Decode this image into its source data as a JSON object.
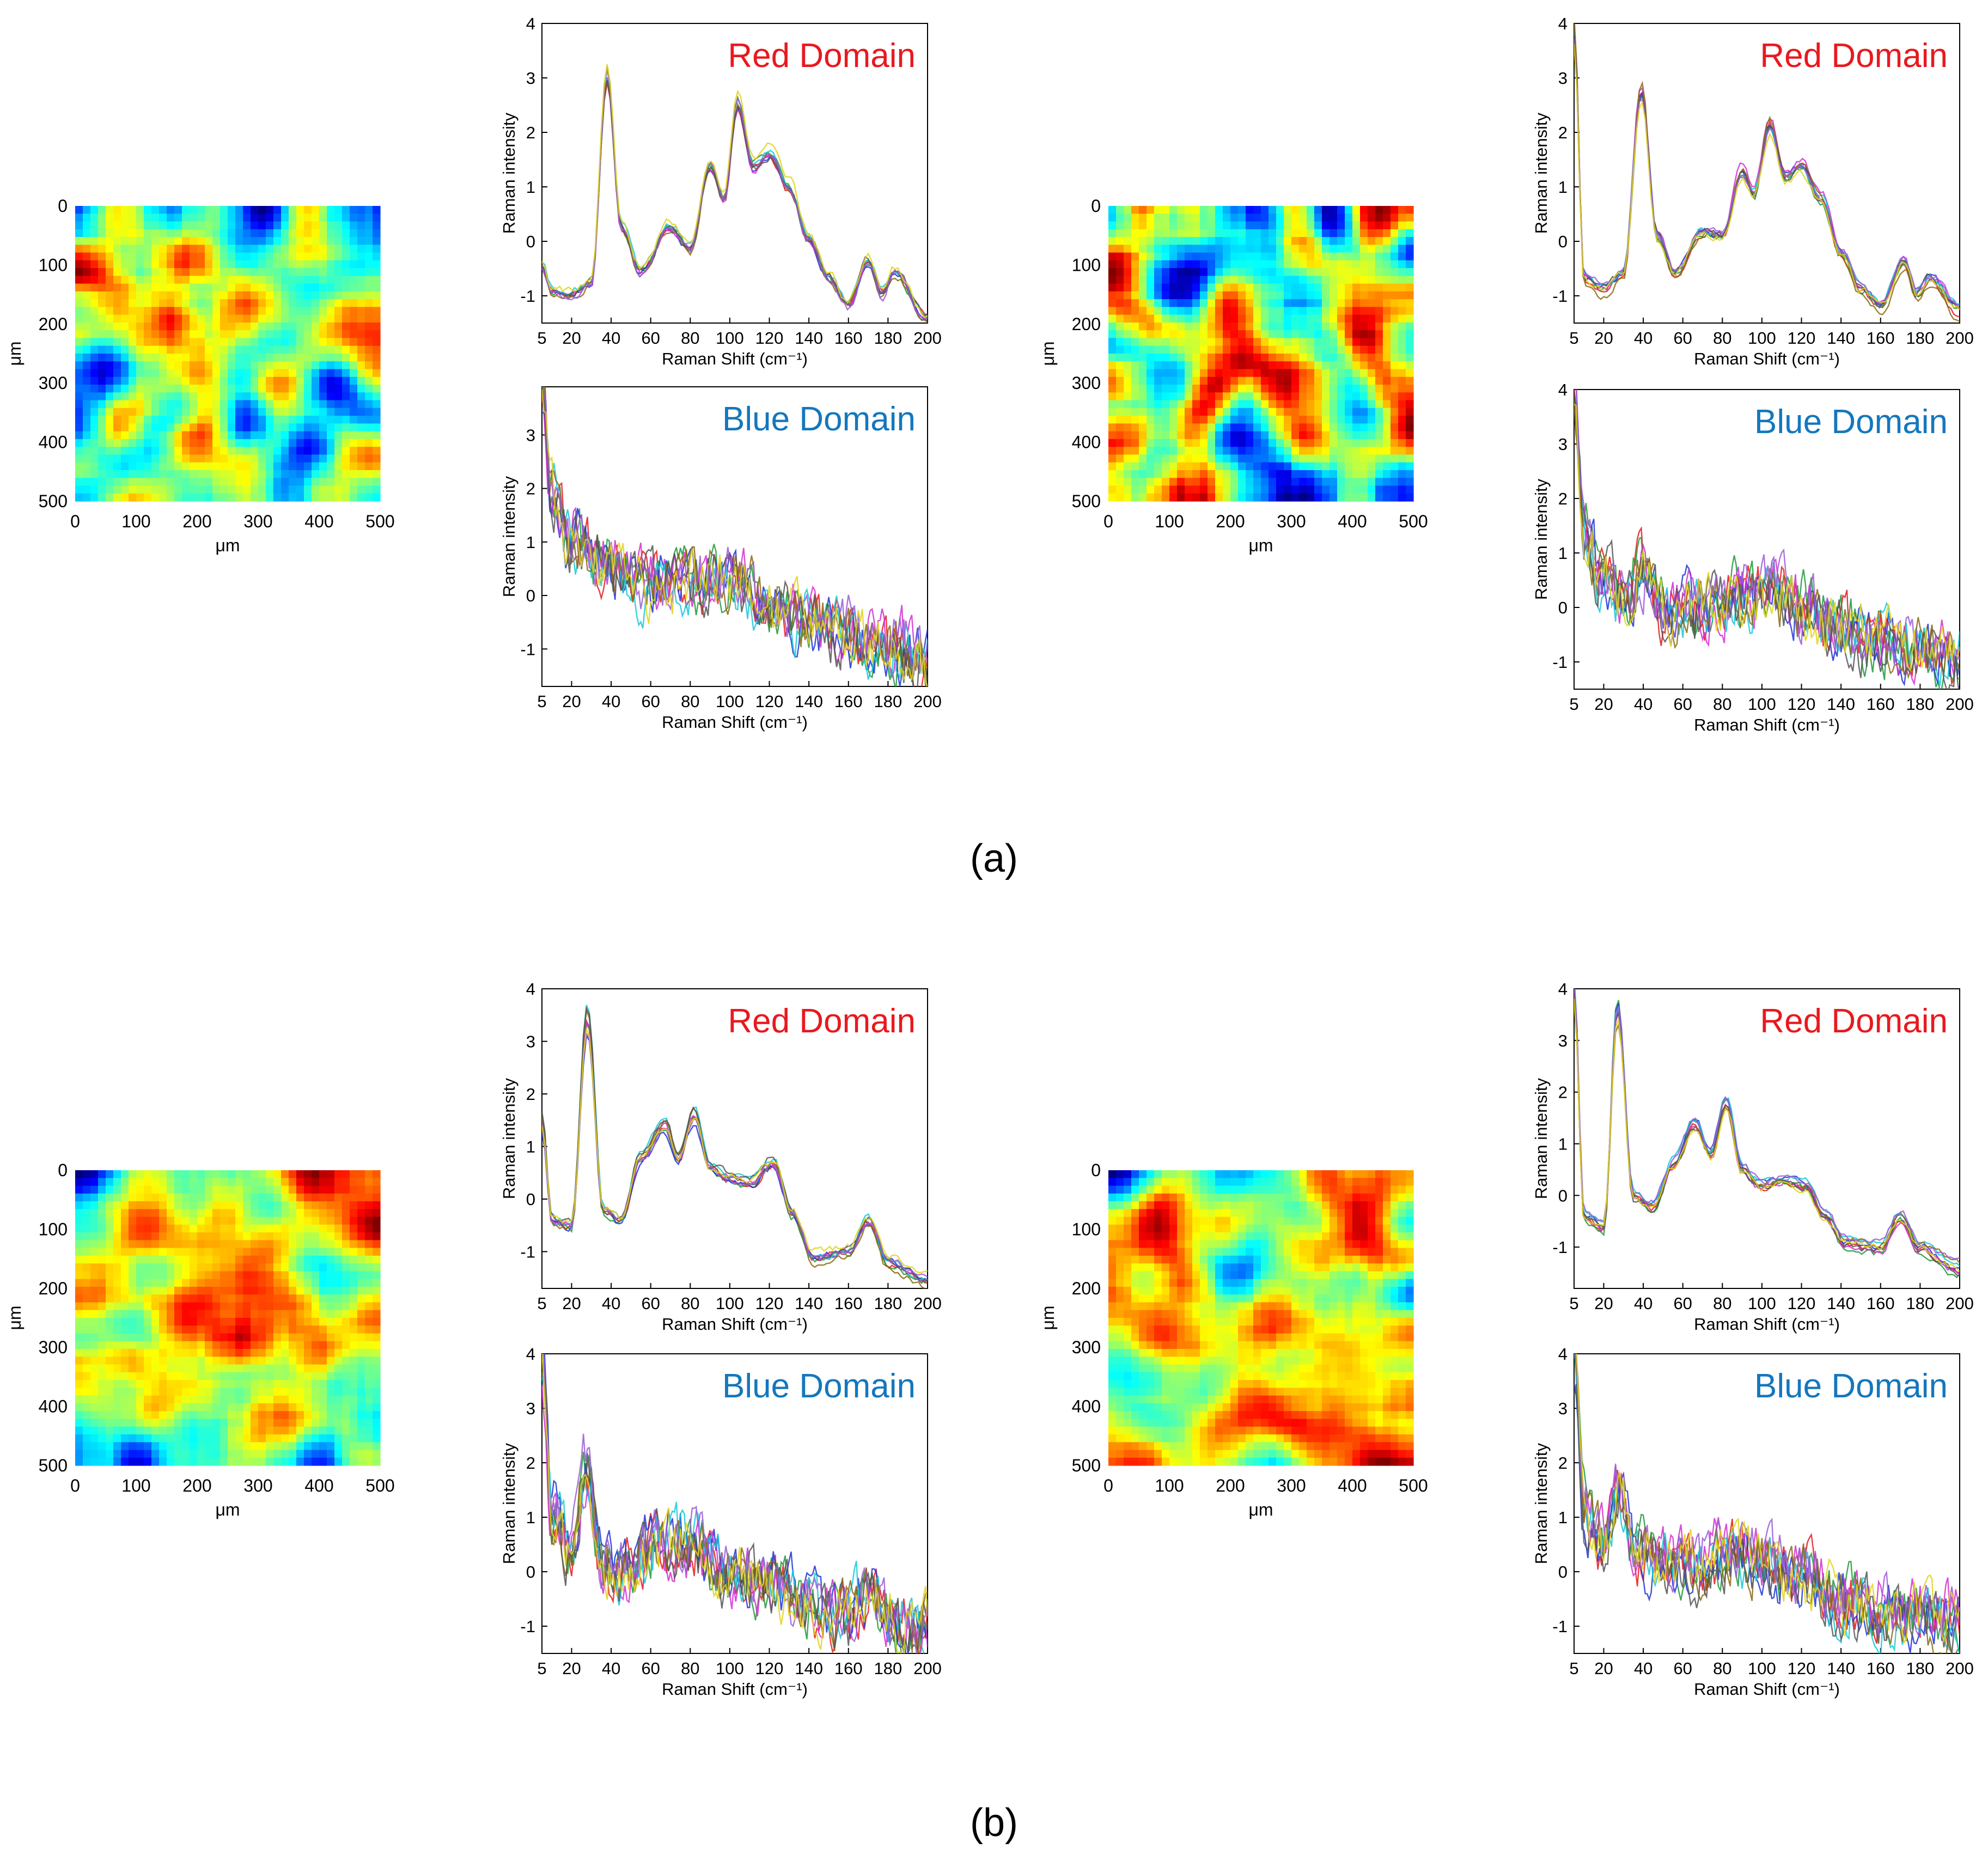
{
  "panel_labels": [
    "(a)",
    "(b)"
  ],
  "heatmaps": [
    {
      "id": "a-left",
      "panel": "a",
      "x_label": "μm",
      "y_label": "μm",
      "x_ticks": [
        "0",
        "100",
        "200",
        "300",
        "400",
        "500"
      ],
      "y_ticks": [
        "0",
        "100",
        "200",
        "300",
        "400",
        "500"
      ],
      "seed": 11
    },
    {
      "id": "a-right",
      "panel": "a",
      "x_label": "μm",
      "y_label": "μm",
      "x_ticks": [
        "0",
        "100",
        "200",
        "300",
        "400",
        "500"
      ],
      "y_ticks": [
        "0",
        "100",
        "200",
        "300",
        "400",
        "500"
      ],
      "seed": 23
    },
    {
      "id": "b-left",
      "panel": "b",
      "x_label": "μm",
      "y_label": "μm",
      "x_ticks": [
        "0",
        "100",
        "200",
        "300",
        "400",
        "500"
      ],
      "y_ticks": [
        "0",
        "100",
        "200",
        "300",
        "400",
        "500"
      ],
      "seed": 37
    },
    {
      "id": "b-right",
      "panel": "b",
      "x_label": "μm",
      "y_label": "μm",
      "x_ticks": [
        "0",
        "100",
        "200",
        "300",
        "400",
        "500"
      ],
      "y_ticks": [
        "0",
        "100",
        "200",
        "300",
        "400",
        "500"
      ],
      "seed": 53
    }
  ],
  "chart_data": [
    {
      "id": "a-left-red",
      "type": "line",
      "domain_label": "Red Domain",
      "label_color": "#e8191f",
      "xlabel": "Raman Shift (cm⁻¹)",
      "ylabel": "Raman intensity",
      "xlim": [
        5,
        200
      ],
      "ylim": [
        -1.5,
        4
      ],
      "xticks": [
        5,
        20,
        40,
        60,
        80,
        100,
        120,
        140,
        160,
        180,
        200
      ],
      "yticks": [
        -1,
        0,
        1,
        2,
        3,
        4
      ],
      "n_series": 9,
      "peaks": [
        {
          "x": 38,
          "y": 3.0
        },
        {
          "x": 70,
          "y": 0.3
        },
        {
          "x": 90,
          "y": 1.4
        },
        {
          "x": 104,
          "y": 2.5
        },
        {
          "x": 120,
          "y": 1.6
        },
        {
          "x": 140,
          "y": 0.1
        },
        {
          "x": 170,
          "y": -0.3
        },
        {
          "x": 183,
          "y": -0.5
        }
      ],
      "series_values": [
        [
          5,
          -0.4
        ],
        [
          10,
          -0.85
        ],
        [
          20,
          -0.9
        ],
        [
          30,
          -0.7
        ],
        [
          38,
          3.0
        ],
        [
          45,
          0.3
        ],
        [
          55,
          -0.5
        ],
        [
          70,
          0.3
        ],
        [
          80,
          -0.1
        ],
        [
          90,
          1.4
        ],
        [
          97,
          0.8
        ],
        [
          104,
          2.5
        ],
        [
          112,
          1.4
        ],
        [
          120,
          1.6
        ],
        [
          130,
          1.0
        ],
        [
          140,
          0.1
        ],
        [
          150,
          -0.6
        ],
        [
          160,
          -1.1
        ],
        [
          170,
          -0.3
        ],
        [
          177,
          -0.9
        ],
        [
          183,
          -0.5
        ],
        [
          200,
          -1.35
        ]
      ]
    },
    {
      "id": "a-left-blue",
      "type": "line",
      "domain_label": "Blue Domain",
      "label_color": "#1477bd",
      "xlabel": "Raman Shift (cm⁻¹)",
      "ylabel": "Raman intensity",
      "xlim": [
        5,
        200
      ],
      "ylim": [
        -1.7,
        3.9
      ],
      "xticks": [
        5,
        20,
        40,
        60,
        80,
        100,
        120,
        140,
        160,
        180,
        200
      ],
      "yticks": [
        -1,
        0,
        1,
        2,
        3
      ],
      "n_series": 9,
      "series_values": [
        [
          5,
          3.8
        ],
        [
          10,
          1.9
        ],
        [
          20,
          1.0
        ],
        [
          40,
          0.6
        ],
        [
          60,
          0.2
        ],
        [
          80,
          0.25
        ],
        [
          100,
          0.3
        ],
        [
          120,
          -0.1
        ],
        [
          140,
          -0.4
        ],
        [
          160,
          -0.7
        ],
        [
          180,
          -0.9
        ],
        [
          200,
          -1.2
        ]
      ]
    },
    {
      "id": "a-right-red",
      "type": "line",
      "domain_label": "Red Domain",
      "label_color": "#e8191f",
      "xlabel": "Raman Shift (cm⁻¹)",
      "ylabel": "Raman intensity",
      "xlim": [
        5,
        200
      ],
      "ylim": [
        -1.5,
        4
      ],
      "xticks": [
        5,
        20,
        40,
        60,
        80,
        100,
        120,
        140,
        160,
        180,
        200
      ],
      "yticks": [
        -1,
        0,
        1,
        2,
        3,
        4
      ],
      "n_series": 9,
      "series_values": [
        [
          5,
          4.0
        ],
        [
          10,
          -0.7
        ],
        [
          20,
          -0.9
        ],
        [
          30,
          -0.6
        ],
        [
          39,
          2.8
        ],
        [
          47,
          0.1
        ],
        [
          56,
          -0.6
        ],
        [
          70,
          0.2
        ],
        [
          80,
          0.1
        ],
        [
          90,
          1.3
        ],
        [
          96,
          0.9
        ],
        [
          104,
          2.2
        ],
        [
          112,
          1.2
        ],
        [
          120,
          1.4
        ],
        [
          130,
          0.8
        ],
        [
          140,
          -0.2
        ],
        [
          150,
          -0.9
        ],
        [
          160,
          -1.2
        ],
        [
          172,
          -0.4
        ],
        [
          178,
          -1.0
        ],
        [
          185,
          -0.7
        ],
        [
          200,
          -1.3
        ]
      ]
    },
    {
      "id": "a-right-blue",
      "type": "line",
      "domain_label": "Blue Domain",
      "label_color": "#1477bd",
      "xlabel": "Raman Shift (cm⁻¹)",
      "ylabel": "Raman intensity",
      "xlim": [
        5,
        200
      ],
      "ylim": [
        -1.5,
        4
      ],
      "xticks": [
        5,
        20,
        40,
        60,
        80,
        100,
        120,
        140,
        160,
        180,
        200
      ],
      "yticks": [
        -1,
        0,
        1,
        2,
        3,
        4
      ],
      "n_series": 9,
      "series_values": [
        [
          5,
          4.0
        ],
        [
          10,
          1.5
        ],
        [
          20,
          0.6
        ],
        [
          30,
          0.2
        ],
        [
          39,
          0.6
        ],
        [
          50,
          0.0
        ],
        [
          70,
          0.0
        ],
        [
          90,
          0.2
        ],
        [
          105,
          0.3
        ],
        [
          120,
          0.0
        ],
        [
          140,
          -0.4
        ],
        [
          160,
          -0.6
        ],
        [
          180,
          -0.7
        ],
        [
          200,
          -1.0
        ]
      ]
    },
    {
      "id": "b-left-red",
      "type": "line",
      "domain_label": "Red Domain",
      "label_color": "#e8191f",
      "xlabel": "Raman Shift (cm⁻¹)",
      "ylabel": "Raman intensity",
      "xlim": [
        5,
        200
      ],
      "ylim": [
        -1.7,
        4
      ],
      "xticks": [
        5,
        20,
        40,
        60,
        80,
        100,
        120,
        140,
        160,
        180,
        200
      ],
      "yticks": [
        -1,
        0,
        1,
        2,
        3,
        4
      ],
      "n_series": 9,
      "series_values": [
        [
          5,
          1.5
        ],
        [
          10,
          -0.4
        ],
        [
          20,
          -0.5
        ],
        [
          28,
          3.4
        ],
        [
          36,
          -0.2
        ],
        [
          45,
          -0.4
        ],
        [
          55,
          0.8
        ],
        [
          67,
          1.4
        ],
        [
          74,
          0.8
        ],
        [
          82,
          1.6
        ],
        [
          90,
          0.6
        ],
        [
          100,
          0.4
        ],
        [
          110,
          0.3
        ],
        [
          122,
          0.7
        ],
        [
          132,
          -0.3
        ],
        [
          142,
          -1.1
        ],
        [
          160,
          -1.0
        ],
        [
          170,
          -0.4
        ],
        [
          180,
          -1.2
        ],
        [
          200,
          -1.5
        ]
      ]
    },
    {
      "id": "b-left-blue",
      "type": "line",
      "domain_label": "Blue Domain",
      "label_color": "#1477bd",
      "xlabel": "Raman Shift (cm⁻¹)",
      "ylabel": "Raman intensity",
      "xlim": [
        5,
        200
      ],
      "ylim": [
        -1.5,
        4
      ],
      "xticks": [
        5,
        20,
        40,
        60,
        80,
        100,
        120,
        140,
        160,
        180,
        200
      ],
      "yticks": [
        -1,
        0,
        1,
        2,
        3,
        4
      ],
      "n_series": 9,
      "series_values": [
        [
          5,
          4.0
        ],
        [
          10,
          1.0
        ],
        [
          20,
          0.5
        ],
        [
          28,
          1.9
        ],
        [
          36,
          0.1
        ],
        [
          45,
          0.0
        ],
        [
          65,
          0.6
        ],
        [
          80,
          0.5
        ],
        [
          100,
          0.0
        ],
        [
          120,
          -0.2
        ],
        [
          140,
          -0.6
        ],
        [
          160,
          -0.8
        ],
        [
          172,
          -0.4
        ],
        [
          180,
          -0.9
        ],
        [
          200,
          -1.0
        ]
      ]
    },
    {
      "id": "b-right-red",
      "type": "line",
      "domain_label": "Red Domain",
      "label_color": "#e8191f",
      "xlabel": "Raman Shift (cm⁻¹)",
      "ylabel": "Raman intensity",
      "xlim": [
        5,
        200
      ],
      "ylim": [
        -1.8,
        4
      ],
      "xticks": [
        5,
        20,
        40,
        60,
        80,
        100,
        120,
        140,
        160,
        180,
        200
      ],
      "yticks": [
        -1,
        0,
        1,
        2,
        3,
        4
      ],
      "n_series": 9,
      "series_values": [
        [
          5,
          4.0
        ],
        [
          10,
          -0.4
        ],
        [
          20,
          -0.6
        ],
        [
          27,
          3.6
        ],
        [
          35,
          0.0
        ],
        [
          45,
          -0.2
        ],
        [
          55,
          0.6
        ],
        [
          66,
          1.4
        ],
        [
          74,
          0.8
        ],
        [
          82,
          1.8
        ],
        [
          90,
          0.5
        ],
        [
          100,
          0.2
        ],
        [
          110,
          0.3
        ],
        [
          122,
          0.2
        ],
        [
          132,
          -0.4
        ],
        [
          142,
          -0.9
        ],
        [
          160,
          -1.0
        ],
        [
          170,
          -0.4
        ],
        [
          180,
          -1.0
        ],
        [
          200,
          -1.4
        ]
      ]
    },
    {
      "id": "b-right-blue",
      "type": "line",
      "domain_label": "Blue Domain",
      "label_color": "#1477bd",
      "xlabel": "Raman Shift (cm⁻¹)",
      "ylabel": "Raman intensity",
      "xlim": [
        5,
        200
      ],
      "ylim": [
        -1.5,
        4
      ],
      "xticks": [
        5,
        20,
        40,
        60,
        80,
        100,
        120,
        140,
        160,
        180,
        200
      ],
      "yticks": [
        -1,
        0,
        1,
        2,
        3,
        4
      ],
      "n_series": 9,
      "series_values": [
        [
          5,
          4.0
        ],
        [
          10,
          1.1
        ],
        [
          20,
          0.5
        ],
        [
          28,
          1.6
        ],
        [
          36,
          0.4
        ],
        [
          50,
          0.2
        ],
        [
          70,
          0.2
        ],
        [
          85,
          0.4
        ],
        [
          100,
          0.2
        ],
        [
          120,
          -0.1
        ],
        [
          140,
          -0.5
        ],
        [
          160,
          -0.7
        ],
        [
          180,
          -0.8
        ],
        [
          200,
          -0.9
        ]
      ]
    }
  ],
  "colors": {
    "series": [
      "#e8191f",
      "#1f9a3a",
      "#2033d6",
      "#d22fd2",
      "#16c8d8",
      "#8b6a10",
      "#555555",
      "#9b5cd6",
      "#e0d31a",
      "#22b36a",
      "#c45a2a"
    ],
    "axes": "#000000"
  }
}
